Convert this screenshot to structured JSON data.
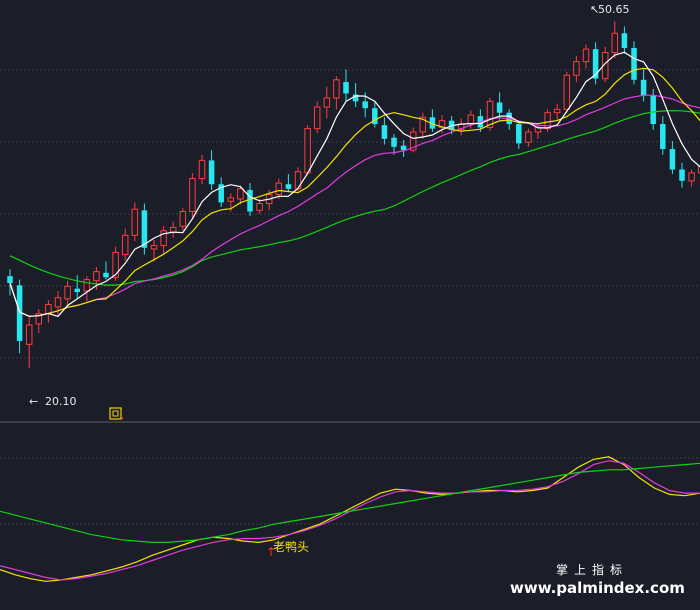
{
  "chart_data": [
    {
      "type": "candlestick",
      "panel": "price",
      "title": "",
      "ylim": [
        18,
        52
      ],
      "grid": true,
      "colors": {
        "up": "#ff3c3c",
        "down": "#27e6f0",
        "ma5": "#ffffff",
        "ma10": "#f2e400",
        "ma20": "#e13ce1",
        "ma60": "#12d012"
      },
      "annotations": {
        "high_label": "50.65",
        "low_label": "20.10",
        "high_value": 50.65,
        "low_value": 20.1,
        "marker_icon": "square-signal-icon"
      },
      "ohlc": [
        [
          28.2,
          28.8,
          26.5,
          27.6
        ],
        [
          27.4,
          27.9,
          21.4,
          22.5
        ],
        [
          22.2,
          24.6,
          20.1,
          23.9
        ],
        [
          24.0,
          25.3,
          23.2,
          24.9
        ],
        [
          24.9,
          26.1,
          24.1,
          25.7
        ],
        [
          25.5,
          26.9,
          24.7,
          26.3
        ],
        [
          26.2,
          27.8,
          25.6,
          27.3
        ],
        [
          27.1,
          28.3,
          26.2,
          26.8
        ],
        [
          26.9,
          28.2,
          26.0,
          27.9
        ],
        [
          27.8,
          29.0,
          27.0,
          28.6
        ],
        [
          28.5,
          29.5,
          27.9,
          28.1
        ],
        [
          28.1,
          30.8,
          27.8,
          30.3
        ],
        [
          30.1,
          32.4,
          29.6,
          31.8
        ],
        [
          31.8,
          34.7,
          31.3,
          34.1
        ],
        [
          34.0,
          34.6,
          30.1,
          30.7
        ],
        [
          30.6,
          31.4,
          29.5,
          30.9
        ],
        [
          30.9,
          32.6,
          30.2,
          32.2
        ],
        [
          32.1,
          33.0,
          31.6,
          32.5
        ],
        [
          32.6,
          34.2,
          32.2,
          33.9
        ],
        [
          33.9,
          37.3,
          33.4,
          36.8
        ],
        [
          36.8,
          38.9,
          36.3,
          38.4
        ],
        [
          38.4,
          39.3,
          35.8,
          36.3
        ],
        [
          36.3,
          36.9,
          34.3,
          34.7
        ],
        [
          34.8,
          35.5,
          33.9,
          35.1
        ],
        [
          35.0,
          36.2,
          34.5,
          35.9
        ],
        [
          35.8,
          36.4,
          33.5,
          33.9
        ],
        [
          34.0,
          35.0,
          33.7,
          34.6
        ],
        [
          34.6,
          35.8,
          34.0,
          35.4
        ],
        [
          35.4,
          36.8,
          35.0,
          36.4
        ],
        [
          36.3,
          37.2,
          35.6,
          35.9
        ],
        [
          35.9,
          37.8,
          35.7,
          37.4
        ],
        [
          37.3,
          41.5,
          37.1,
          41.2
        ],
        [
          41.2,
          43.6,
          40.8,
          43.1
        ],
        [
          43.1,
          44.9,
          42.1,
          43.9
        ],
        [
          43.9,
          45.8,
          42.9,
          45.5
        ],
        [
          45.3,
          46.4,
          43.6,
          44.3
        ],
        [
          44.2,
          45.2,
          43.1,
          43.6
        ],
        [
          43.6,
          44.4,
          42.2,
          43.0
        ],
        [
          43.0,
          43.5,
          41.3,
          41.6
        ],
        [
          41.5,
          42.2,
          39.8,
          40.3
        ],
        [
          40.4,
          40.7,
          38.9,
          39.6
        ],
        [
          39.7,
          40.2,
          38.7,
          39.3
        ],
        [
          39.3,
          41.3,
          39.1,
          40.9
        ],
        [
          40.9,
          42.6,
          40.3,
          42.2
        ],
        [
          42.2,
          42.9,
          40.9,
          41.2
        ],
        [
          41.3,
          42.4,
          40.8,
          41.9
        ],
        [
          41.9,
          42.3,
          40.7,
          41.1
        ],
        [
          41.1,
          42.1,
          40.6,
          41.6
        ],
        [
          41.6,
          42.8,
          41.2,
          42.4
        ],
        [
          42.3,
          42.9,
          40.9,
          41.3
        ],
        [
          41.3,
          43.9,
          41.0,
          43.6
        ],
        [
          43.5,
          44.4,
          42.0,
          42.6
        ],
        [
          42.6,
          42.9,
          41.1,
          41.6
        ],
        [
          41.6,
          41.9,
          39.4,
          39.9
        ],
        [
          40.0,
          41.2,
          39.6,
          40.9
        ],
        [
          40.9,
          41.6,
          40.3,
          41.3
        ],
        [
          41.2,
          42.9,
          40.9,
          42.6
        ],
        [
          42.6,
          43.4,
          42.0,
          42.9
        ],
        [
          42.9,
          46.2,
          42.6,
          45.9
        ],
        [
          45.9,
          47.6,
          45.3,
          47.1
        ],
        [
          47.1,
          48.6,
          46.5,
          48.2
        ],
        [
          48.2,
          48.8,
          45.1,
          45.6
        ],
        [
          45.6,
          48.4,
          45.3,
          47.9
        ],
        [
          47.9,
          50.65,
          47.4,
          49.6
        ],
        [
          49.6,
          50.2,
          47.8,
          48.3
        ],
        [
          48.3,
          48.9,
          45.1,
          45.5
        ],
        [
          45.5,
          46.5,
          43.6,
          44.1
        ],
        [
          44.1,
          44.7,
          41.1,
          41.6
        ],
        [
          41.6,
          42.3,
          38.9,
          39.4
        ],
        [
          39.4,
          40.1,
          37.2,
          37.6
        ],
        [
          37.6,
          38.2,
          36.0,
          36.6
        ],
        [
          36.6,
          37.6,
          36.1,
          37.3
        ],
        [
          37.3,
          38.4,
          36.9,
          37.9
        ]
      ]
    },
    {
      "type": "line",
      "panel": "indicator",
      "title": "",
      "signal_label": "老鸭头",
      "series": [
        {
          "color": "#f2e400",
          "values": [
            25,
            21,
            18,
            16,
            17,
            19,
            21,
            24,
            27,
            31,
            36,
            40,
            44,
            48,
            50,
            49,
            47,
            46,
            48,
            52,
            56,
            60,
            66,
            72,
            78,
            84,
            87,
            86,
            84,
            83,
            84,
            85,
            86,
            86,
            85,
            86,
            88,
            96,
            104,
            110,
            112,
            106,
            96,
            88,
            83,
            82,
            84
          ]
        },
        {
          "color": "#e13ce1",
          "values": [
            28,
            25,
            22,
            19,
            17,
            18,
            20,
            22,
            25,
            28,
            32,
            36,
            40,
            43,
            46,
            48,
            49,
            49,
            50,
            52,
            55,
            59,
            64,
            70,
            76,
            81,
            85,
            86,
            85,
            84,
            84,
            85,
            85,
            86,
            86,
            87,
            89,
            93,
            99,
            106,
            109,
            107,
            100,
            92,
            86,
            84,
            84
          ]
        },
        {
          "color": "#12d012",
          "values": [
            70,
            67,
            64,
            61,
            58,
            55,
            52,
            50,
            48,
            47,
            46,
            46,
            47,
            48,
            50,
            52,
            55,
            57,
            60,
            62,
            64,
            66,
            68,
            70,
            72,
            74,
            76,
            78,
            80,
            82,
            84,
            86,
            88,
            90,
            92,
            94,
            96,
            98,
            100,
            101,
            102,
            102,
            103,
            104,
            105,
            106,
            107
          ]
        }
      ]
    }
  ],
  "watermark": {
    "line1": "掌上指标",
    "line2": "www.palmindex.com"
  }
}
